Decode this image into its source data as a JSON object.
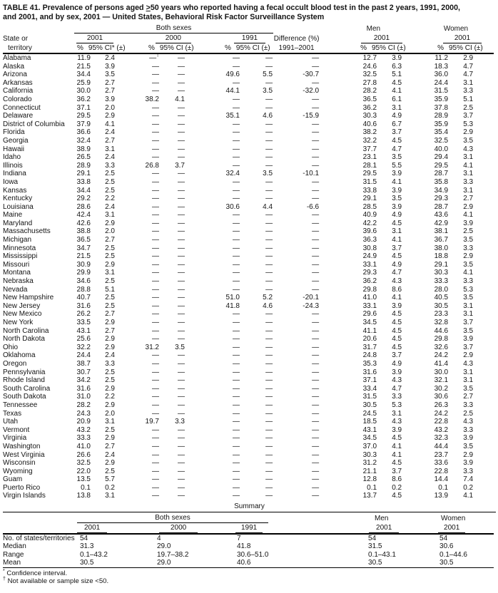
{
  "title": {
    "line1a": "TABLE 41. Prevalence of persons aged ",
    "geq": ">",
    "line1b": "50 years who reported having a fecal occult blood test in the past 2 years, 1991, 2000,",
    "line2": "and 2001, and by sex, 2001 — United States, Behavioral Risk Factor Surveillance System"
  },
  "header": {
    "group_both": "Both sexes",
    "group_men": "Men",
    "group_women": "Women",
    "state_line1": "State or",
    "state_line2": "territory",
    "y2001": "2001",
    "y2000": "2000",
    "y1991": "1991",
    "ymen": "2001",
    "ywomen": "2001",
    "diff_line1": "Difference (%)",
    "diff_line2": "1991–2001",
    "pct": "%",
    "ci_star": "95% CI* (±)",
    "ci": "95% CI (±)"
  },
  "table": {
    "col_names": [
      "state",
      "both-2001-pct",
      "both-2001-ci",
      "both-2000-pct",
      "both-2000-ci",
      "both-1991-pct",
      "both-1991-ci",
      "diff-1991-2001",
      "men-2001-pct",
      "men-2001-ci",
      "women-2001-pct",
      "women-2001-ci"
    ],
    "rows": [
      [
        "Alabama",
        "11.9",
        "2.4",
        "—†",
        "—",
        "—",
        "—",
        "—",
        "12.7",
        "3.9",
        "11.2",
        "2.9"
      ],
      [
        "Alaska",
        "21.5",
        "3.9",
        "—",
        "—",
        "—",
        "—",
        "—",
        "24.6",
        "6.3",
        "18.3",
        "4.7"
      ],
      [
        "Arizona",
        "34.4",
        "3.5",
        "—",
        "—",
        "49.6",
        "5.5",
        "-30.7",
        "32.5",
        "5.1",
        "36.0",
        "4.7"
      ],
      [
        "Arkansas",
        "25.9",
        "2.7",
        "—",
        "—",
        "—",
        "—",
        "—",
        "27.8",
        "4.5",
        "24.4",
        "3.1"
      ],
      [
        "California",
        "30.0",
        "2.7",
        "—",
        "—",
        "44.1",
        "3.5",
        "-32.0",
        "28.2",
        "4.1",
        "31.5",
        "3.3"
      ],
      [
        "Colorado",
        "36.2",
        "3.9",
        "38.2",
        "4.1",
        "—",
        "—",
        "—",
        "36.5",
        "6.1",
        "35.9",
        "5.1"
      ],
      [
        "Connecticut",
        "37.1",
        "2.0",
        "—",
        "—",
        "—",
        "—",
        "—",
        "36.2",
        "3.1",
        "37.8",
        "2.5"
      ],
      [
        "Delaware",
        "29.5",
        "2.9",
        "—",
        "—",
        "35.1",
        "4.6",
        "-15.9",
        "30.3",
        "4.9",
        "28.9",
        "3.7"
      ],
      [
        "District of Columbia",
        "37.9",
        "4.1",
        "—",
        "—",
        "—",
        "—",
        "—",
        "40.6",
        "6.7",
        "35.9",
        "5.3"
      ],
      [
        "Florida",
        "36.6",
        "2.4",
        "—",
        "—",
        "—",
        "—",
        "—",
        "38.2",
        "3.7",
        "35.4",
        "2.9"
      ],
      [
        "Georgia",
        "32.4",
        "2.7",
        "—",
        "—",
        "—",
        "—",
        "—",
        "32.2",
        "4.5",
        "32.5",
        "3.5"
      ],
      [
        "Hawaii",
        "38.9",
        "3.1",
        "—",
        "—",
        "—",
        "—",
        "—",
        "37.7",
        "4.7",
        "40.0",
        "4.3"
      ],
      [
        "Idaho",
        "26.5",
        "2.4",
        "—",
        "—",
        "—",
        "—",
        "—",
        "23.1",
        "3.5",
        "29.4",
        "3.1"
      ],
      [
        "Illinois",
        "28.9",
        "3.3",
        "26.8",
        "3.7",
        "—",
        "—",
        "—",
        "28.1",
        "5.5",
        "29.5",
        "4.1"
      ],
      [
        "Indiana",
        "29.1",
        "2.5",
        "—",
        "—",
        "32.4",
        "3.5",
        "-10.1",
        "29.5",
        "3.9",
        "28.7",
        "3.1"
      ],
      [
        "Iowa",
        "33.8",
        "2.5",
        "—",
        "—",
        "—",
        "—",
        "—",
        "31.5",
        "4.1",
        "35.8",
        "3.3"
      ],
      [
        "Kansas",
        "34.4",
        "2.5",
        "—",
        "—",
        "—",
        "—",
        "—",
        "33.8",
        "3.9",
        "34.9",
        "3.1"
      ],
      [
        "Kentucky",
        "29.2",
        "2.2",
        "—",
        "—",
        "—",
        "—",
        "—",
        "29.1",
        "3.5",
        "29.3",
        "2.7"
      ],
      [
        "Louisiana",
        "28.6",
        "2.4",
        "—",
        "—",
        "30.6",
        "4.4",
        "-6.6",
        "28.5",
        "3.9",
        "28.7",
        "2.9"
      ],
      [
        "Maine",
        "42.4",
        "3.1",
        "—",
        "—",
        "—",
        "—",
        "—",
        "40.9",
        "4.9",
        "43.6",
        "4.1"
      ],
      [
        "Maryland",
        "42.6",
        "2.9",
        "—",
        "—",
        "—",
        "—",
        "—",
        "42.2",
        "4.5",
        "42.9",
        "3.9"
      ],
      [
        "Massachusetts",
        "38.8",
        "2.0",
        "—",
        "—",
        "—",
        "—",
        "—",
        "39.6",
        "3.1",
        "38.1",
        "2.5"
      ],
      [
        "Michigan",
        "36.5",
        "2.7",
        "—",
        "—",
        "—",
        "—",
        "—",
        "36.3",
        "4.1",
        "36.7",
        "3.5"
      ],
      [
        "Minnesota",
        "34.7",
        "2.5",
        "—",
        "—",
        "—",
        "—",
        "—",
        "30.8",
        "3.7",
        "38.0",
        "3.3"
      ],
      [
        "Mississippi",
        "21.5",
        "2.5",
        "—",
        "—",
        "—",
        "—",
        "—",
        "24.9",
        "4.5",
        "18.8",
        "2.9"
      ],
      [
        "Missouri",
        "30.9",
        "2.9",
        "—",
        "—",
        "—",
        "—",
        "—",
        "33.1",
        "4.9",
        "29.1",
        "3.5"
      ],
      [
        "Montana",
        "29.9",
        "3.1",
        "—",
        "—",
        "—",
        "—",
        "—",
        "29.3",
        "4.7",
        "30.3",
        "4.1"
      ],
      [
        "Nebraska",
        "34.6",
        "2.5",
        "—",
        "—",
        "—",
        "—",
        "—",
        "36.2",
        "4.3",
        "33.3",
        "3.3"
      ],
      [
        "Nevada",
        "28.8",
        "5.1",
        "—",
        "—",
        "—",
        "—",
        "—",
        "29.8",
        "8.6",
        "28.0",
        "5.3"
      ],
      [
        "New Hampshire",
        "40.7",
        "2.5",
        "—",
        "—",
        "51.0",
        "5.2",
        "-20.1",
        "41.0",
        "4.1",
        "40.5",
        "3.5"
      ],
      [
        "New Jersey",
        "31.6",
        "2.5",
        "—",
        "—",
        "41.8",
        "4.6",
        "-24.3",
        "33.1",
        "3.9",
        "30.5",
        "3.1"
      ],
      [
        "New Mexico",
        "26.2",
        "2.7",
        "—",
        "—",
        "—",
        "—",
        "—",
        "29.6",
        "4.5",
        "23.3",
        "3.1"
      ],
      [
        "New York",
        "33.5",
        "2.9",
        "—",
        "—",
        "—",
        "—",
        "—",
        "34.5",
        "4.5",
        "32.8",
        "3.7"
      ],
      [
        "North Carolina",
        "43.1",
        "2.7",
        "—",
        "—",
        "—",
        "—",
        "—",
        "41.1",
        "4.5",
        "44.6",
        "3.5"
      ],
      [
        "North Dakota",
        "25.6",
        "2.9",
        "—",
        "—",
        "—",
        "—",
        "—",
        "20.6",
        "4.5",
        "29.8",
        "3.9"
      ],
      [
        "Ohio",
        "32.2",
        "2.9",
        "31.2",
        "3.5",
        "—",
        "—",
        "—",
        "31.7",
        "4.5",
        "32.6",
        "3.7"
      ],
      [
        "Oklahoma",
        "24.4",
        "2.4",
        "—",
        "—",
        "—",
        "—",
        "—",
        "24.8",
        "3.7",
        "24.2",
        "2.9"
      ],
      [
        "Oregon",
        "38.7",
        "3.3",
        "—",
        "—",
        "—",
        "—",
        "—",
        "35.3",
        "4.9",
        "41.4",
        "4.3"
      ],
      [
        "Pennsylvania",
        "30.7",
        "2.5",
        "—",
        "—",
        "—",
        "—",
        "—",
        "31.6",
        "3.9",
        "30.0",
        "3.1"
      ],
      [
        "Rhode Island",
        "34.2",
        "2.5",
        "—",
        "—",
        "—",
        "—",
        "—",
        "37.1",
        "4.3",
        "32.1",
        "3.1"
      ],
      [
        "South Carolina",
        "31.6",
        "2.9",
        "—",
        "—",
        "—",
        "—",
        "—",
        "33.4",
        "4.7",
        "30.2",
        "3.5"
      ],
      [
        "South Dakota",
        "31.0",
        "2.2",
        "—",
        "—",
        "—",
        "—",
        "—",
        "31.5",
        "3.3",
        "30.6",
        "2.7"
      ],
      [
        "Tennessee",
        "28.2",
        "2.9",
        "—",
        "—",
        "—",
        "—",
        "—",
        "30.5",
        "5.3",
        "26.3",
        "3.3"
      ],
      [
        "Texas",
        "24.3",
        "2.0",
        "—",
        "—",
        "—",
        "—",
        "—",
        "24.5",
        "3.1",
        "24.2",
        "2.5"
      ],
      [
        "Utah",
        "20.9",
        "3.1",
        "19.7",
        "3.3",
        "—",
        "—",
        "—",
        "18.5",
        "4.3",
        "22.8",
        "4.3"
      ],
      [
        "Vermont",
        "43.2",
        "2.5",
        "—",
        "—",
        "—",
        "—",
        "—",
        "43.1",
        "3.9",
        "43.2",
        "3.3"
      ],
      [
        "Virginia",
        "33.3",
        "2.9",
        "—",
        "—",
        "—",
        "—",
        "—",
        "34.5",
        "4.5",
        "32.3",
        "3.9"
      ],
      [
        "Washington",
        "41.0",
        "2.7",
        "—",
        "—",
        "—",
        "—",
        "—",
        "37.0",
        "4.1",
        "44.4",
        "3.5"
      ],
      [
        "West Virginia",
        "26.6",
        "2.4",
        "—",
        "—",
        "—",
        "—",
        "—",
        "30.3",
        "4.1",
        "23.7",
        "2.9"
      ],
      [
        "Wisconsin",
        "32.5",
        "2.9",
        "—",
        "—",
        "—",
        "—",
        "—",
        "31.2",
        "4.5",
        "33.6",
        "3.9"
      ],
      [
        "Wyoming",
        "22.0",
        "2.5",
        "—",
        "—",
        "—",
        "—",
        "—",
        "21.1",
        "3.7",
        "22.8",
        "3.3"
      ],
      [
        "Guam",
        "13.5",
        "5.7",
        "—",
        "—",
        "—",
        "—",
        "—",
        "12.8",
        "8.6",
        "14.4",
        "7.4"
      ],
      [
        "Puerto Rico",
        "0.1",
        "0.2",
        "—",
        "—",
        "—",
        "—",
        "—",
        "0.1",
        "0.2",
        "0.1",
        "0.2"
      ],
      [
        "Virgin Islands",
        "13.8",
        "3.1",
        "—",
        "—",
        "—",
        "—",
        "—",
        "13.7",
        "4.5",
        "13.9",
        "4.1"
      ]
    ]
  },
  "summary": {
    "heading": "Summary",
    "group_both": "Both sexes",
    "group_men": "Men",
    "group_women": "Women",
    "y2001": "2001",
    "y2000": "2000",
    "y1991": "1991",
    "ymen": "2001",
    "ywomen": "2001",
    "col_names": [
      "label",
      "both-2001",
      "both-2000",
      "both-1991",
      "men-2001",
      "women-2001"
    ],
    "rows": [
      {
        "label": "No. of states/territories",
        "values": [
          "54",
          "4",
          "7",
          "54",
          "54"
        ]
      },
      {
        "label": "Median",
        "values": [
          "31.3",
          "29.0",
          "41.8",
          "31.5",
          "30.6"
        ]
      },
      {
        "label": "Range",
        "values": [
          "0.1–43.2",
          "19.7–38.2",
          "30.6–51.0",
          "0.1–43.1",
          "0.1–44.6"
        ]
      },
      {
        "label": "Mean",
        "values": [
          "30.5",
          "29.0",
          "40.6",
          "30.5",
          "30.5"
        ]
      }
    ]
  },
  "footnotes": [
    {
      "marker": "*",
      "text": "Confidence interval."
    },
    {
      "marker": "†",
      "text": "Not available or sample size <50."
    }
  ]
}
